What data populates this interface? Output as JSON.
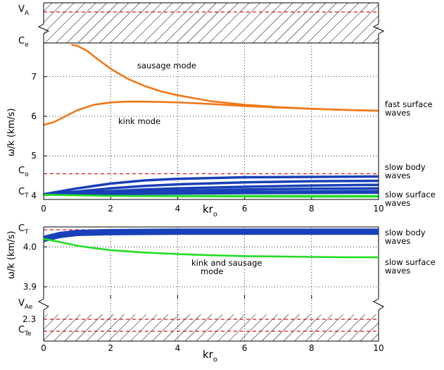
{
  "chart_data": [
    {
      "type": "line",
      "name": "top-panel",
      "xlabel_main": "kr",
      "xlabel_sub": "o",
      "ylabel": "ω/k (km/s)",
      "xlim": [
        0,
        10
      ],
      "ylim": [
        3.9,
        7.85
      ],
      "xticks": [
        "0",
        "2",
        "4",
        "6",
        "8",
        "10"
      ],
      "yticks": [
        {
          "v": 4,
          "t": "4"
        },
        {
          "v": 5,
          "t": "5"
        },
        {
          "v": 6,
          "t": "6"
        },
        {
          "v": 7,
          "t": "7"
        }
      ],
      "grid": true,
      "reference_lines": [
        {
          "label_main": "V",
          "label_sub": "A",
          "band": "hatched-top"
        },
        {
          "label_main": "C",
          "label_sub": "e",
          "value": 7.85
        },
        {
          "label_main": "C",
          "label_sub": "o",
          "value": 4.55
        },
        {
          "label_main": "C",
          "label_sub": "T",
          "value": 4.03
        }
      ],
      "series": [
        {
          "color": "#f07818",
          "x": [
            0.85,
            1.0,
            1.3,
            1.6,
            2.0,
            2.5,
            3.0,
            3.5,
            4.0,
            5.0,
            6.0,
            7.0,
            8.0,
            9.0,
            10.0
          ],
          "y": [
            7.8,
            7.78,
            7.65,
            7.45,
            7.2,
            6.95,
            6.77,
            6.63,
            6.53,
            6.38,
            6.29,
            6.23,
            6.19,
            6.16,
            6.14
          ]
        },
        {
          "color": "#f07818",
          "x": [
            0,
            0.3,
            0.6,
            1.0,
            1.5,
            2.0,
            2.5,
            3.0,
            3.5,
            4.0,
            5.0,
            6.0,
            7.0,
            8.0,
            9.0,
            10.0
          ],
          "y": [
            5.78,
            5.85,
            5.98,
            6.15,
            6.29,
            6.35,
            6.37,
            6.37,
            6.36,
            6.35,
            6.31,
            6.26,
            6.22,
            6.19,
            6.16,
            6.14
          ]
        },
        {
          "color": "#1840b8",
          "x": [
            0,
            1,
            2,
            3,
            4,
            6,
            8,
            10
          ],
          "y": [
            4.03,
            4.18,
            4.3,
            4.38,
            4.42,
            4.46,
            4.47,
            4.48
          ]
        },
        {
          "color": "#1840b8",
          "x": [
            0,
            1,
            2,
            3,
            4,
            6,
            8,
            10
          ],
          "y": [
            4.03,
            4.1,
            4.18,
            4.24,
            4.28,
            4.33,
            4.36,
            4.37
          ]
        },
        {
          "color": "#1840b8",
          "x": [
            0,
            1,
            2,
            3,
            4,
            6,
            8,
            10
          ],
          "y": [
            4.03,
            4.07,
            4.11,
            4.15,
            4.18,
            4.22,
            4.25,
            4.27
          ]
        },
        {
          "color": "#1840b8",
          "x": [
            0,
            1,
            2,
            3,
            4,
            6,
            8,
            10
          ],
          "y": [
            4.03,
            4.05,
            4.08,
            4.1,
            4.12,
            4.15,
            4.17,
            4.18
          ]
        },
        {
          "color": "#1840b8",
          "x": [
            0,
            1,
            2,
            3,
            4,
            6,
            8,
            10
          ],
          "y": [
            4.03,
            4.04,
            4.05,
            4.06,
            4.07,
            4.09,
            4.1,
            4.11
          ]
        },
        {
          "color": "#1840b8",
          "x": [
            0,
            1,
            2,
            3,
            4,
            6,
            8,
            10
          ],
          "y": [
            4.03,
            4.035,
            4.04,
            4.045,
            4.05,
            4.06,
            4.065,
            4.07
          ]
        },
        {
          "color": "#22dd22",
          "x": [
            0,
            2,
            4,
            6,
            8,
            10
          ],
          "y": [
            4.02,
            3.99,
            3.98,
            3.975,
            3.97,
            3.97
          ]
        }
      ],
      "annotations": [
        {
          "text": "sausage mode",
          "x": 2.8,
          "y": 7.2
        },
        {
          "text": "kink mode",
          "x": 2.3,
          "y": 5.85
        }
      ],
      "right_labels": [
        "fast surface\nwaves",
        "slow body\nwaves",
        "slow surface\nwaves"
      ]
    },
    {
      "type": "line",
      "name": "bottom-panel",
      "xlabel_main": "kr",
      "xlabel_sub": "o",
      "ylabel": "ω/k (km/s)",
      "xlim": [
        0,
        10
      ],
      "ylim": [
        3.87,
        4.05
      ],
      "xticks": [
        "0",
        "2",
        "4",
        "6",
        "8",
        "10"
      ],
      "yticks": [
        {
          "v": 3.9,
          "t": "3.9"
        },
        {
          "v": 4.0,
          "t": "4.0"
        }
      ],
      "lower_band_ticks": [
        {
          "t": "2.3"
        }
      ],
      "grid": true,
      "reference_lines": [
        {
          "label_main": "C",
          "label_sub": "T",
          "value": 4.043
        },
        {
          "label_main": "V",
          "label_sub": "Ae",
          "band": "hatched-bottom"
        },
        {
          "label_main": "C",
          "label_sub": "Te",
          "band": "hatched-bottom"
        }
      ],
      "series": [
        {
          "color": "#1840b8",
          "x": [
            0,
            0.5,
            1,
            2,
            4,
            6,
            8,
            10
          ],
          "y": [
            4.02,
            4.03,
            4.035,
            4.037,
            4.038,
            4.038,
            4.038,
            4.038
          ]
        },
        {
          "color": "#22dd22",
          "x": [
            0,
            0.5,
            1,
            1.5,
            2,
            3,
            4,
            5,
            6,
            7,
            8,
            9,
            10
          ],
          "y": [
            4.02,
            4.012,
            4.003,
            3.997,
            3.992,
            3.986,
            3.982,
            3.979,
            3.977,
            3.976,
            3.975,
            3.974,
            3.974
          ]
        }
      ],
      "annotations": [
        {
          "text": "kink and sausage\nmode",
          "x": 4.5,
          "y": 3.965
        }
      ],
      "right_labels": [
        "slow body\nwaves",
        "slow surface\nwaves"
      ]
    }
  ]
}
